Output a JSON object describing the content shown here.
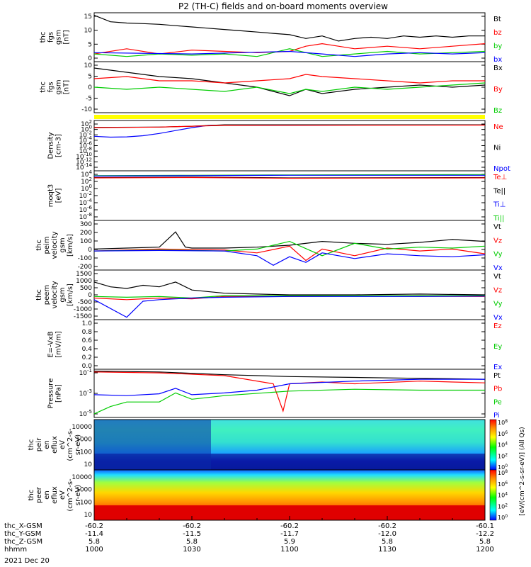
{
  "title": "P2 (TH-C) fields and on-board moments overview",
  "date_label": "2021 Dec 20",
  "orbit_rows": [
    {
      "label": "thc_X-GSM",
      "values": [
        "-60.2",
        "-60.2",
        "-60.2",
        "-60.2",
        "-60.1"
      ]
    },
    {
      "label": "thc_Y-GSM",
      "values": [
        "-11.4",
        "-11.5",
        "-11.7",
        "-12.0",
        "-12.2"
      ]
    },
    {
      "label": "thc_Z-GSM",
      "values": [
        "5.8",
        "5.8",
        "5.9",
        "5.8",
        "5.8"
      ]
    },
    {
      "label": "hhmm",
      "values": [
        "1000",
        "1030",
        "1100",
        "1130",
        "1200"
      ]
    }
  ],
  "colorbar_label": "[eV/(cm^2-s-sr-eV)] (All Qs)",
  "colorbar_ticks": [
    "10^8",
    "10^6",
    "10^4",
    "10^2",
    "10^0"
  ],
  "chart_data": [
    {
      "type": "line",
      "ylabel": [
        "thc",
        "fgs",
        "gsm",
        "[nT]"
      ],
      "ylim": [
        -3,
        16
      ],
      "yticks": [
        "15",
        "10",
        "5",
        "0"
      ],
      "legend": [
        {
          "name": "Bt",
          "color": "#000000"
        },
        {
          "name": "bz",
          "color": "#ff0000"
        },
        {
          "name": "by",
          "color": "#00cc00"
        },
        {
          "name": "bx",
          "color": "#0000ff"
        }
      ],
      "series": [
        {
          "name": "Bt",
          "color": "#000000",
          "x": [
            0,
            5,
            10,
            15,
            20,
            25,
            30,
            35,
            40,
            45,
            50,
            55,
            60,
            65,
            70,
            75,
            80,
            85,
            90,
            95,
            100,
            105,
            110,
            115,
            120
          ],
          "values": [
            15,
            12.5,
            12,
            11.8,
            11.5,
            11,
            10.5,
            10,
            9.5,
            9,
            8.5,
            8,
            7.5,
            6,
            7,
            5,
            6,
            6.5,
            6,
            7,
            6.5,
            7,
            6.5,
            7,
            7
          ]
        },
        {
          "name": "bz",
          "color": "#ff0000",
          "x": [
            0,
            10,
            20,
            30,
            40,
            50,
            60,
            65,
            70,
            75,
            80,
            90,
            100,
            110,
            120
          ],
          "values": [
            0,
            2,
            0,
            1.5,
            1,
            0.5,
            1,
            3,
            4,
            3,
            2,
            3,
            2,
            3,
            4
          ]
        },
        {
          "name": "by",
          "color": "#00cc00",
          "x": [
            0,
            10,
            20,
            30,
            40,
            50,
            60,
            70,
            80,
            90,
            100,
            110,
            120
          ],
          "values": [
            0,
            -1,
            0,
            -0.5,
            0,
            -1,
            2,
            -1,
            0,
            1,
            0,
            0.5,
            1
          ]
        },
        {
          "name": "bx",
          "color": "#0000ff",
          "x": [
            0,
            30,
            60,
            70,
            80,
            90,
            100,
            110,
            120
          ],
          "values": [
            0.5,
            0,
            1,
            0,
            -1,
            0,
            0.5,
            0,
            0.5
          ]
        }
      ]
    },
    {
      "type": "line",
      "ylabel": [
        "thc",
        "fgs",
        "gsm",
        "[nT]"
      ],
      "ylim": [
        -13,
        11
      ],
      "yticks": [
        "10",
        "5",
        "0",
        "-5",
        "-10"
      ],
      "legend": [
        {
          "name": "Bx",
          "color": "#000000"
        },
        {
          "name": "By",
          "color": "#ff0000"
        },
        {
          "name": "Bz",
          "color": "#00cc00"
        }
      ],
      "series": [
        {
          "name": "Bx",
          "color": "#000000",
          "x": [
            0,
            10,
            20,
            30,
            40,
            50,
            55,
            60,
            65,
            70,
            80,
            90,
            100,
            110,
            120
          ],
          "values": [
            8,
            6,
            4,
            3,
            1,
            -1,
            -3,
            -5,
            -2,
            -4,
            -2,
            -1,
            0,
            -1,
            0
          ]
        },
        {
          "name": "By",
          "color": "#ff0000",
          "x": [
            0,
            10,
            20,
            30,
            40,
            50,
            60,
            65,
            70,
            80,
            90,
            100,
            110,
            120
          ],
          "values": [
            3,
            4,
            2,
            2,
            1,
            2,
            3,
            5,
            4,
            3,
            2,
            1,
            2,
            2
          ]
        },
        {
          "name": "Bz",
          "color": "#00cc00",
          "x": [
            0,
            10,
            20,
            30,
            40,
            50,
            60,
            65,
            70,
            80,
            90,
            100,
            110,
            120
          ],
          "values": [
            -1,
            -2,
            -1,
            -2,
            -3,
            -1,
            -4,
            -2,
            -3,
            -1,
            -2,
            -1,
            0,
            1
          ]
        }
      ]
    },
    {
      "type": "line",
      "log": true,
      "ylabel": [
        "Density",
        "[cm-3]"
      ],
      "ylim": [
        -15,
        2.5
      ],
      "yticks": [
        "10^2",
        "10^0",
        "10^-2",
        "10^-4",
        "10^-6",
        "10^-8",
        "10^-10",
        "10^-12",
        "10^-14"
      ],
      "legend": [
        {
          "name": "Ne",
          "color": "#ff0000"
        },
        {
          "name": "Ni",
          "color": "#000000"
        },
        {
          "name": "Npot",
          "color": "#0000ff"
        }
      ],
      "series": [
        {
          "name": "Npot",
          "color": "#0000ff",
          "x": [
            0,
            5,
            10,
            15,
            20,
            25,
            30,
            35,
            120
          ],
          "values": [
            -3,
            -3.3,
            -3.2,
            -2.8,
            -2,
            -1,
            0,
            0.8,
            1
          ]
        },
        {
          "name": "Ni",
          "color": "#000000",
          "x": [
            0,
            20,
            30,
            40,
            120
          ],
          "values": [
            0.1,
            0.2,
            0.5,
            1,
            1
          ]
        },
        {
          "name": "Ne",
          "color": "#ff0000",
          "x": [
            0,
            20,
            30,
            40,
            120
          ],
          "values": [
            0,
            0.2,
            0.5,
            0.8,
            0.9
          ]
        }
      ]
    },
    {
      "type": "line",
      "log": true,
      "ylabel": [
        "moqt3",
        "[eV]"
      ],
      "ylim": [
        -9,
        4.3
      ],
      "yticks": [
        "10^4",
        "10^2",
        "10^0",
        "10^-2",
        "10^-4",
        "10^-6",
        "10^-8"
      ],
      "legend": [
        {
          "name": "Te⊥",
          "color": "#ff0000"
        },
        {
          "name": "Te||",
          "color": "#000000"
        },
        {
          "name": "Ti⊥",
          "color": "#0000ff"
        },
        {
          "name": "Ti||",
          "color": "#00cc00"
        }
      ],
      "series": [
        {
          "name": "Ti||",
          "color": "#00cc00",
          "x": [
            0,
            30,
            60,
            120
          ],
          "values": [
            3,
            3.1,
            3.2,
            3.3
          ]
        },
        {
          "name": "Ti⊥",
          "color": "#0000ff",
          "x": [
            0,
            30,
            60,
            120
          ],
          "values": [
            2.9,
            3,
            3.1,
            3.1
          ]
        },
        {
          "name": "Te||",
          "color": "#000000",
          "x": [
            0,
            30,
            60,
            120
          ],
          "values": [
            2.5,
            2.6,
            2.4,
            2.5
          ]
        },
        {
          "name": "Te⊥",
          "color": "#ff0000",
          "x": [
            0,
            30,
            60,
            120
          ],
          "values": [
            2.4,
            2.5,
            2.3,
            2.4
          ]
        }
      ]
    },
    {
      "type": "line",
      "ylabel": [
        "thc",
        "peim",
        "velocity",
        "gsm",
        "[km/s]"
      ],
      "ylim": [
        -200,
        320
      ],
      "yticks": [
        "300",
        "200",
        "100",
        "0",
        "-100",
        "-200"
      ],
      "legend": [
        {
          "name": "Vt",
          "color": "#000000"
        },
        {
          "name": "Vz",
          "color": "#ff0000"
        },
        {
          "name": "Vy",
          "color": "#00cc00"
        },
        {
          "name": "Vx",
          "color": "#0000ff"
        }
      ],
      "series": [
        {
          "name": "Vt",
          "color": "#000000",
          "x": [
            0,
            10,
            20,
            25,
            28,
            30,
            40,
            50,
            60,
            70,
            80,
            90,
            100,
            110,
            120
          ],
          "values": [
            20,
            30,
            40,
            200,
            40,
            30,
            30,
            40,
            60,
            100,
            80,
            70,
            90,
            120,
            100
          ]
        },
        {
          "name": "Vz",
          "color": "#ff0000",
          "x": [
            0,
            20,
            40,
            50,
            60,
            65,
            70,
            80,
            90,
            100,
            110,
            120
          ],
          "values": [
            0,
            20,
            10,
            -20,
            50,
            -100,
            20,
            -50,
            30,
            0,
            20,
            -30
          ]
        },
        {
          "name": "Vy",
          "color": "#00cc00",
          "x": [
            0,
            20,
            40,
            50,
            60,
            70,
            80,
            90,
            100,
            110,
            120
          ],
          "values": [
            0,
            10,
            0,
            20,
            100,
            -50,
            80,
            20,
            40,
            30,
            50
          ]
        },
        {
          "name": "Vx",
          "color": "#0000ff",
          "x": [
            0,
            20,
            40,
            50,
            55,
            60,
            65,
            70,
            80,
            90,
            100,
            110,
            120
          ],
          "values": [
            0,
            5,
            0,
            -50,
            -150,
            -60,
            -120,
            -20,
            -80,
            -30,
            -50,
            -60,
            -40
          ]
        }
      ]
    },
    {
      "type": "line",
      "ylabel": [
        "thc",
        "peem",
        "velocity",
        "gsm",
        "[km/s]"
      ],
      "ylim": [
        -1550,
        1550
      ],
      "yticks": [
        "1500",
        "1000",
        "500",
        "0",
        "-500",
        "-1000",
        "-1500"
      ],
      "legend": [
        {
          "name": "Vt",
          "color": "#000000"
        },
        {
          "name": "Vz",
          "color": "#ff0000"
        },
        {
          "name": "Vy",
          "color": "#00cc00"
        },
        {
          "name": "Vx",
          "color": "#0000ff"
        }
      ],
      "series": [
        {
          "name": "Vt",
          "color": "#000000",
          "x": [
            0,
            5,
            10,
            15,
            20,
            25,
            30,
            40,
            50,
            60,
            80,
            100,
            120
          ],
          "values": [
            800,
            500,
            400,
            600,
            500,
            800,
            300,
            100,
            50,
            0,
            0,
            50,
            0
          ]
        },
        {
          "name": "Vz",
          "color": "#ff0000",
          "x": [
            0,
            10,
            20,
            30,
            40,
            60,
            80,
            100,
            120
          ],
          "values": [
            -200,
            -300,
            -200,
            -250,
            -100,
            -100,
            -80,
            -90,
            -100
          ]
        },
        {
          "name": "Vy",
          "color": "#00cc00",
          "x": [
            0,
            10,
            20,
            30,
            40,
            60,
            80,
            100,
            120
          ],
          "values": [
            -100,
            -150,
            -100,
            -200,
            -50,
            -50,
            -60,
            -50,
            -50
          ]
        },
        {
          "name": "Vx",
          "color": "#0000ff",
          "x": [
            0,
            10,
            15,
            20,
            30,
            40,
            60,
            80,
            100,
            120
          ],
          "values": [
            -300,
            -1400,
            -400,
            -300,
            -200,
            -150,
            -100,
            -100,
            -100,
            -80
          ]
        }
      ]
    },
    {
      "type": "line",
      "ylabel": [
        "E=-VxB",
        "[mV/m]"
      ],
      "ylim": [
        0,
        1
      ],
      "yticks": [
        "1.0",
        "0.8",
        "0.6",
        "0.4",
        "0.2",
        "0.0"
      ],
      "legend": [
        {
          "name": "Ez",
          "color": "#ff0000"
        },
        {
          "name": "Ey",
          "color": "#00cc00"
        },
        {
          "name": "Ex",
          "color": "#0000ff"
        }
      ],
      "series": []
    },
    {
      "type": "line",
      "log": true,
      "ylabel": [
        "Pressure",
        "[nPa]"
      ],
      "ylim": [
        -5.2,
        0.1
      ],
      "yticks": [
        "10^-1",
        "10^-3",
        "10^-5"
      ],
      "legend": [
        {
          "name": "Pt",
          "color": "#000000"
        },
        {
          "name": "Pb",
          "color": "#ff0000"
        },
        {
          "name": "Pe",
          "color": "#00cc00"
        },
        {
          "name": "Pi",
          "color": "#0000ff"
        }
      ],
      "series": [
        {
          "name": "Pt",
          "color": "#000000",
          "x": [
            0,
            20,
            40,
            60,
            80,
            100,
            120
          ],
          "values": [
            -0.1,
            -0.2,
            -0.5,
            -0.7,
            -0.8,
            -0.9,
            -1
          ]
        },
        {
          "name": "Pb",
          "color": "#ff0000",
          "x": [
            0,
            20,
            40,
            55,
            58,
            60,
            70,
            80,
            100,
            120
          ],
          "values": [
            -0.2,
            -0.3,
            -0.6,
            -1.5,
            -4.5,
            -1.5,
            -1.3,
            -1.5,
            -1.2,
            -1.4
          ]
        },
        {
          "name": "Pi",
          "color": "#0000ff",
          "x": [
            0,
            10,
            20,
            25,
            30,
            40,
            50,
            60,
            80,
            100,
            120
          ],
          "values": [
            -2.7,
            -2.8,
            -2.6,
            -2,
            -2.7,
            -2.5,
            -2.2,
            -1.5,
            -1.2,
            -1,
            -1
          ]
        },
        {
          "name": "Pe",
          "color": "#00cc00",
          "x": [
            0,
            5,
            10,
            20,
            25,
            30,
            35,
            40,
            60,
            80,
            100,
            120
          ],
          "values": [
            -4.8,
            -4,
            -3.5,
            -3.5,
            -2.5,
            -3.2,
            -3,
            -2.8,
            -2.3,
            -2.1,
            -2.2,
            -2.2
          ]
        }
      ]
    },
    {
      "type": "heatmap",
      "ylabel": [
        "thc",
        "peir",
        "en",
        "eflux",
        "eV",
        "(cm^2-s-",
        "sr-eV)"
      ],
      "yticks": [
        "10000",
        "1000",
        "100",
        "10"
      ]
    },
    {
      "type": "heatmap",
      "ylabel": [
        "thc",
        "peer",
        "en",
        "eflux",
        "eV",
        "(cm^2-s-",
        "sr-eV)"
      ],
      "yticks": [
        "10000",
        "1000",
        "100",
        "10"
      ]
    }
  ]
}
